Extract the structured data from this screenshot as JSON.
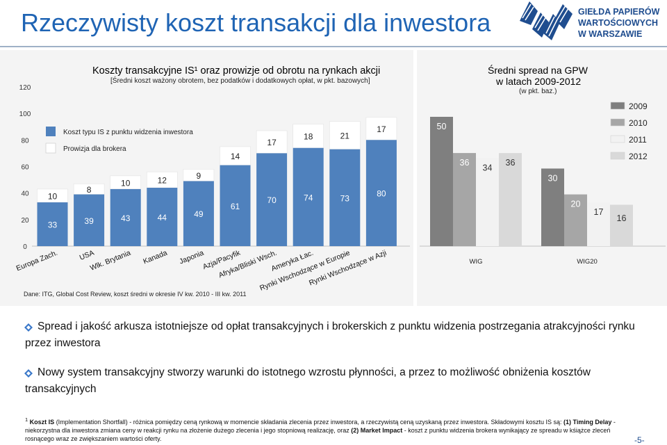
{
  "page": {
    "title": "Rzeczywisty koszt transakcji dla inwestora",
    "logo_lines": [
      "GIEŁDA PAPIERÓW",
      "WARTOŚCIOWYCH",
      "W WARSZAWIE"
    ],
    "page_number": "-5-",
    "accent_color": "#1f64b4"
  },
  "chart_data": [
    {
      "type": "bar",
      "stacked": true,
      "title": "Koszty transakcyjne IS¹ oraz prowizje od obrotu na rynkach akcji",
      "subtitle": "[Średni koszt ważony obrotem, bez podatków i dodatkowych opłat, w pkt. bazowych]",
      "categories": [
        "Europa Zach.",
        "USA",
        "Wlk. Brytania",
        "Kanada",
        "Japonia",
        "Azja/Pacyfik",
        "Afryka/Bliski Wsch.",
        "Ameryka Łac.",
        "Rynki Wschodzące w Europie",
        "Rynki Wschodzące w Azji"
      ],
      "series": [
        {
          "name": "Koszt typu IS z punktu widzenia inwestora",
          "values": [
            33,
            39,
            43,
            44,
            49,
            61,
            70,
            74,
            73,
            80
          ],
          "color": "#4f81bd"
        },
        {
          "name": "Prowizja dla brokera",
          "values": [
            10,
            8,
            10,
            12,
            9,
            14,
            17,
            18,
            21,
            17
          ],
          "color": "#ffffff"
        }
      ],
      "yticks": [
        0,
        20,
        40,
        60,
        80,
        100,
        120
      ],
      "ylim": [
        0,
        120
      ],
      "legend_position": "top-left",
      "grid": false,
      "source": "Dane: ITG, Global Cost Review, koszt średni w okresie IV kw. 2010 - III kw. 2011"
    },
    {
      "type": "bar",
      "title": "Średni spread na GPW",
      "title_line2": "w latach 2009-2012",
      "subtitle": "(w pkt. baz.)",
      "categories": [
        "WIG",
        "WIG20"
      ],
      "series": [
        {
          "name": "2009",
          "values": [
            50,
            30
          ],
          "color": "#7f7f7f"
        },
        {
          "name": "2010",
          "values": [
            36,
            20
          ],
          "color": "#a6a6a6"
        },
        {
          "name": "2011",
          "values": [
            34,
            17
          ],
          "color": "#f2f2f2"
        },
        {
          "name": "2012",
          "values": [
            36,
            16
          ],
          "color": "#d9d9d9"
        }
      ],
      "legend_position": "right",
      "grid": false
    }
  ],
  "bullets": [
    "Spread i jakość arkusza istotniejsze od opłat transakcyjnych i brokerskich z punktu widzenia postrzegania atrakcyjności rynku przez inwestora",
    "Nowy system transakcyjny stworzy warunki do istotnego wzrostu płynności, a przez to możliwość obniżenia kosztów transakcyjnych"
  ],
  "footnote": {
    "sup": "1",
    "text_a": " Koszt IS",
    "text_b": " (Implementation Shortfall) - różnica pomiędzy ceną rynkową w momencie składania zlecenia przez inwestora, a rzeczywistą ceną uzyskaną przez inwestora. Składowymi kosztu IS są: ",
    "text_c": "(1) Timing Delay",
    "text_d": " - niekorzystna dla inwestora zmiana ceny w reakcji rynku na złożenie dużego zlecenia i jego stopniową realizację, oraz ",
    "text_e": "(2) Market Impact",
    "text_f": " - koszt z punktu widzenia brokera wynikający ze spreadu w kśiążce zleceń rosnącego wraz ze zwiększaniem wartości oferty."
  }
}
